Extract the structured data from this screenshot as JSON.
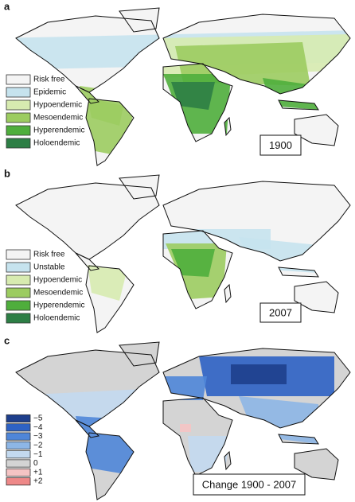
{
  "panels": [
    {
      "letter": "a",
      "label": "1900",
      "legend": [
        {
          "label": "Risk free",
          "color": "#f4f4f4"
        },
        {
          "label": "Epidemic",
          "color": "#c6e3ee"
        },
        {
          "label": "Hypoendemic",
          "color": "#d7ebb0"
        },
        {
          "label": "Mesoendemic",
          "color": "#9ccc60"
        },
        {
          "label": "Hyperendemic",
          "color": "#4fae3c"
        },
        {
          "label": "Holoendemic",
          "color": "#2d7e45"
        }
      ]
    },
    {
      "letter": "b",
      "label": "2007",
      "legend": [
        {
          "label": "Risk free",
          "color": "#f4f4f4"
        },
        {
          "label": "Unstable",
          "color": "#c6e3ee"
        },
        {
          "label": "Hypoendemic",
          "color": "#d7ebb0"
        },
        {
          "label": "Mesoendemic",
          "color": "#9ccc60"
        },
        {
          "label": "Hyperendemic",
          "color": "#4fae3c"
        },
        {
          "label": "Holoendemic",
          "color": "#2d7e45"
        }
      ]
    },
    {
      "letter": "c",
      "label": "Change 1900 - 2007",
      "legend": [
        {
          "label": "−5",
          "color": "#1e3f8c"
        },
        {
          "label": "−4",
          "color": "#2e62c4"
        },
        {
          "label": "−3",
          "color": "#4f86d8"
        },
        {
          "label": "−2",
          "color": "#8db6e6"
        },
        {
          "label": "−1",
          "color": "#c3d9ef"
        },
        {
          "label": "0",
          "color": "#d4d4d4"
        },
        {
          "label": "+1",
          "color": "#f5c4c4"
        },
        {
          "label": "+2",
          "color": "#ee8888"
        }
      ]
    }
  ]
}
